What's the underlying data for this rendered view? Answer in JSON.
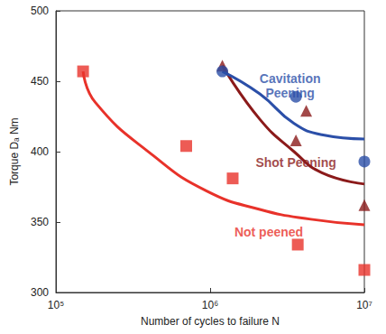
{
  "chart_data": {
    "type": "scatter",
    "x_label": "Number of cycles to failure N",
    "y_label": "Torque Dₐ Nm",
    "log": "x",
    "grid": false,
    "xlim": [
      100000,
      10000000
    ],
    "xticks": [
      {
        "value": 100000,
        "label": "10⁵"
      },
      {
        "value": 1000000,
        "label": "10⁶"
      },
      {
        "value": 10000000,
        "label": "10⁷"
      }
    ],
    "ylim": [
      300,
      500
    ],
    "yticks": [
      300,
      350,
      400,
      450,
      500
    ],
    "series": [
      {
        "name": "Not peened",
        "color": "#e8322a",
        "marker": "square",
        "x": [
          150000,
          700000,
          1400000,
          3700000,
          10000000
        ],
        "values": [
          457,
          404,
          381,
          334,
          316
        ],
        "fit": {
          "x": [
            150000,
            180000,
            430000,
            950000,
            2100000,
            4500000,
            10000000
          ],
          "values": [
            457,
            435,
            397,
            372,
            359,
            352,
            348
          ]
        }
      },
      {
        "name": "Shot Peening",
        "color": "#8b1a1a",
        "marker": "triangle",
        "x": [
          1200000,
          4200000,
          3600000,
          10000000
        ],
        "values": [
          461,
          429,
          408,
          362
        ],
        "fit": {
          "x": [
            1200000,
            2100000,
            3500000,
            5300000,
            10000000
          ],
          "values": [
            461,
            423,
            400,
            385,
            377
          ]
        }
      },
      {
        "name": "Cavitation Peening",
        "color": "#2b4fa8",
        "marker": "circle",
        "x": [
          1200000,
          3600000,
          10000000
        ],
        "values": [
          457,
          439,
          393
        ],
        "fit": {
          "x": [
            1200000,
            2100000,
            3500000,
            5300000,
            10000000
          ],
          "values": [
            457,
            441,
            420,
            412,
            409
          ]
        }
      }
    ],
    "annotations": [
      {
        "text": "Cavitation\nPeening",
        "x": 3300000,
        "y": 447,
        "color": "#2b4fa8"
      },
      {
        "text": "Shot Peening",
        "x": 3600000,
        "y": 392,
        "color": "#8b1a1a"
      },
      {
        "text": "Not peened",
        "x": 2400000,
        "y": 343,
        "color": "#e8322a"
      }
    ]
  }
}
